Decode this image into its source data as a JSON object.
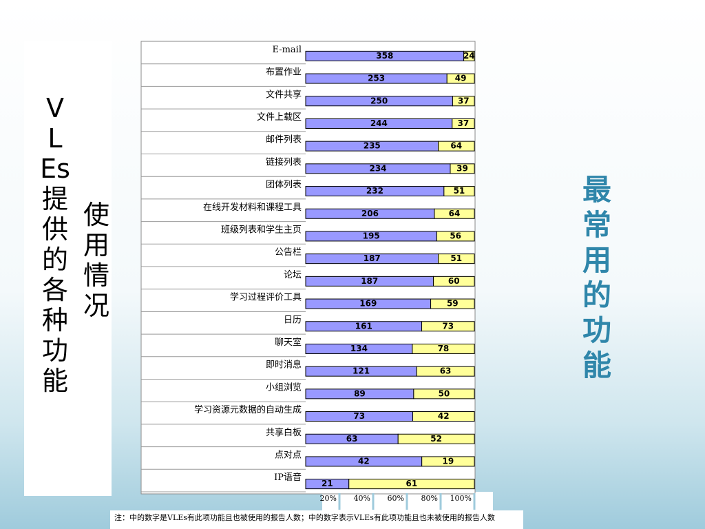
{
  "left_title": "VLEs提供的各种功能",
  "left_subtitle": "使用情况",
  "right_title": "最常用的功能",
  "note": "注：中的数字是VLEs有此项功能且也被使用的报告人数；中的数字表示VLEs有此项功能且也未被使用的报告人数",
  "chart_data": {
    "type": "bar100h",
    "categories": [
      "E-mail",
      "布置作业",
      "文件共享",
      "文件上载区",
      "邮件列表",
      "链接列表",
      "团体列表",
      "在线开发材料和课程工具",
      "班级列表和学生主页",
      "公告栏",
      "论坛",
      "学习过程评价工具",
      "日历",
      "聊天室",
      "即时消息",
      "小组浏览",
      "学习资源元数据的自动生成",
      "共享白板",
      "点对点",
      "IP语音"
    ],
    "series": [
      {
        "color": "#9999ff",
        "values": [
          358,
          253,
          250,
          244,
          235,
          234,
          232,
          206,
          195,
          187,
          187,
          169,
          161,
          134,
          121,
          89,
          73,
          63,
          42,
          21
        ]
      },
      {
        "color": "#ffff99",
        "values": [
          24,
          49,
          37,
          37,
          64,
          39,
          51,
          64,
          56,
          51,
          60,
          59,
          73,
          78,
          63,
          50,
          42,
          52,
          19,
          61
        ]
      }
    ],
    "xlim": [
      0,
      100
    ],
    "xticks": [
      {
        "value": 20,
        "label": "20%"
      },
      {
        "value": 40,
        "label": "40%"
      },
      {
        "value": 60,
        "label": "60%"
      },
      {
        "value": 80,
        "label": "80%"
      },
      {
        "value": 100,
        "label": "100%"
      }
    ]
  }
}
